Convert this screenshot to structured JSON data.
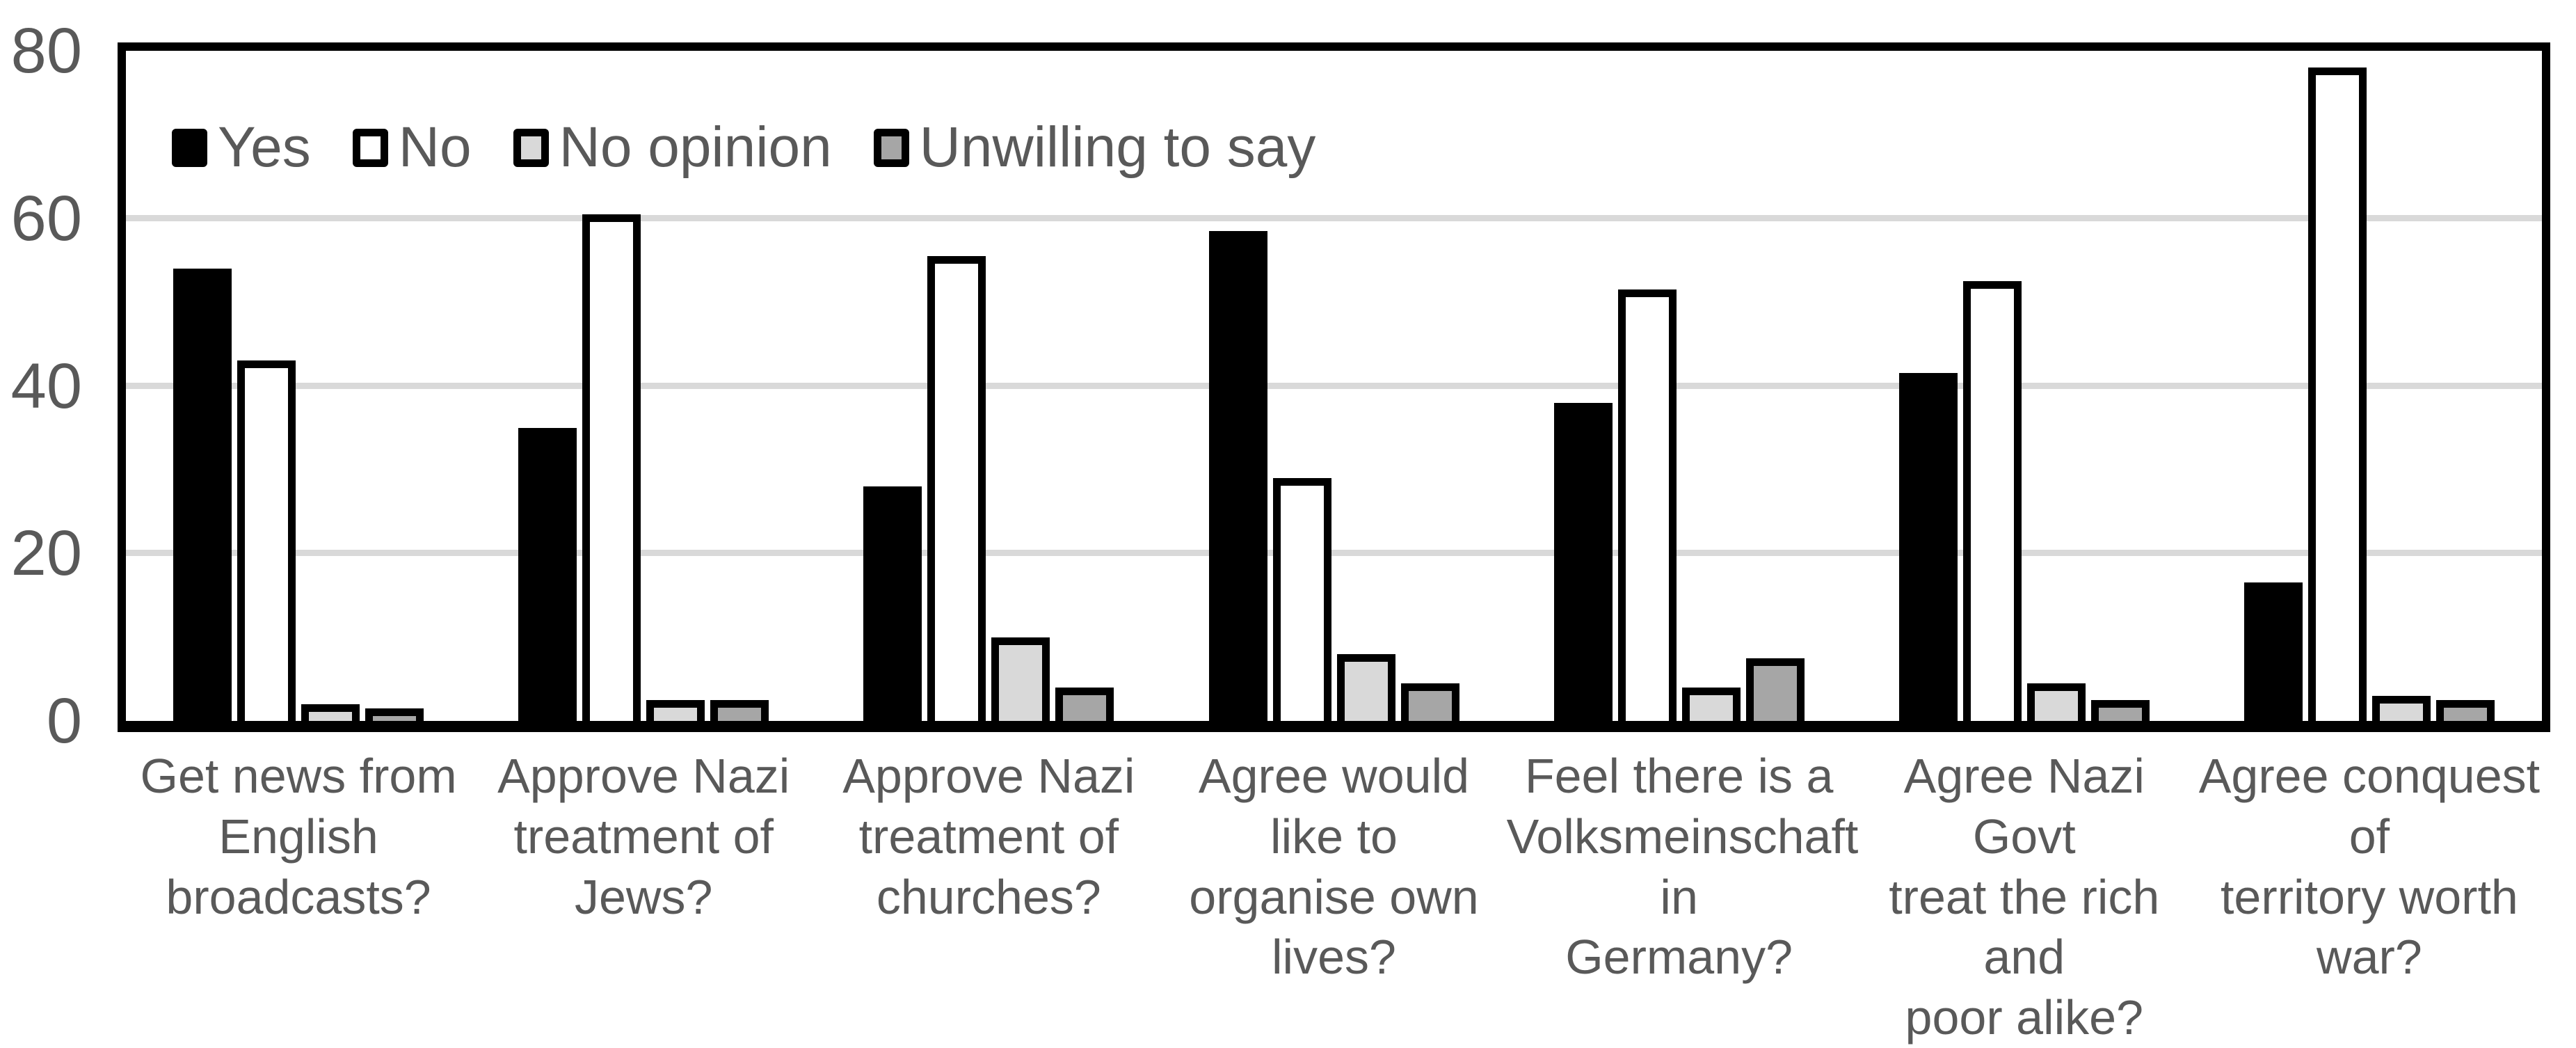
{
  "chart_data": {
    "type": "bar",
    "title": "",
    "xlabel": "",
    "ylabel": "",
    "ylim": [
      0,
      80
    ],
    "yticks": [
      0,
      20,
      40,
      60,
      80
    ],
    "grid": "horizontal-light-gray",
    "legend_position": "top-left-inside",
    "categories": [
      "Get news from\nEnglish broadcasts?",
      "Approve Nazi\ntreatment of Jews?",
      "Approve Nazi\ntreatment of\nchurches?",
      "Agree would like to\norganise own lives?",
      "Feel there is a\nVolksmeinschaft in\nGermany?",
      "Agree Nazi Govt\ntreat the rich and\npoor alike?",
      "Agree conquest of\nterritory worth war?"
    ],
    "series": [
      {
        "name": "Yes",
        "fill": "#000000",
        "outline": "#000000",
        "values": [
          54,
          35,
          28,
          58.5,
          38,
          41.5,
          16.5
        ]
      },
      {
        "name": "No",
        "fill": "#ffffff",
        "outline": "#000000",
        "values": [
          43,
          60.5,
          55.5,
          29,
          51.5,
          52.5,
          78
        ]
      },
      {
        "name": "No opinion",
        "fill": "#d9d9d9",
        "outline": "#000000",
        "values": [
          2,
          2.5,
          10,
          8,
          4,
          4.5,
          3
        ]
      },
      {
        "name": "Unwilling to say",
        "fill": "#a6a6a6",
        "outline": "#000000",
        "values": [
          1.5,
          2.5,
          4,
          4.5,
          7.5,
          2.5,
          2.5
        ]
      }
    ]
  },
  "colors": {
    "axis_text": "#595959",
    "gridline": "#d9d9d9",
    "plot_border": "#000000",
    "background": "#ffffff"
  }
}
